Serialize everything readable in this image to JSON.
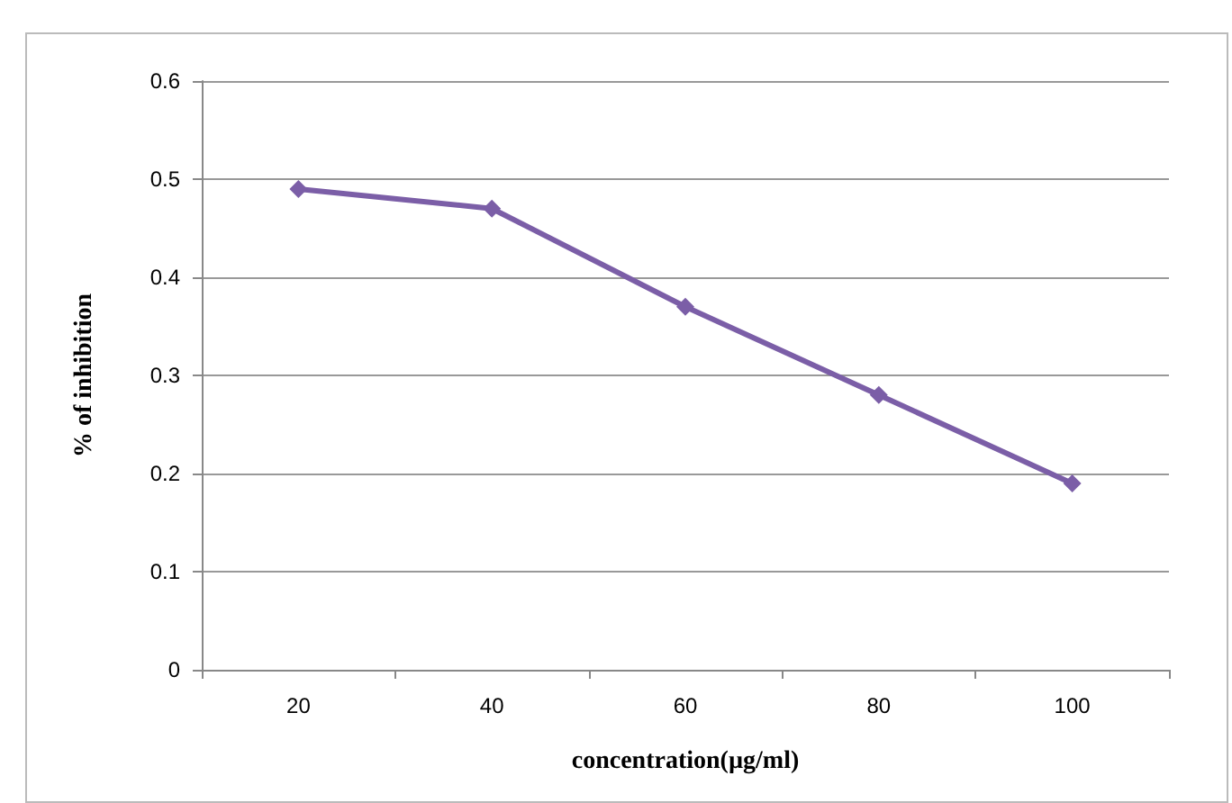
{
  "chart_data": {
    "type": "line",
    "xlabel": "concentration(µg/ml)",
    "ylabel": "% of inhibition",
    "categories": [
      "20",
      "40",
      "60",
      "80",
      "100"
    ],
    "series": [
      {
        "color": "#7b5ea7",
        "values": [
          0.49,
          0.47,
          0.37,
          0.28,
          0.19
        ]
      }
    ],
    "ylim": [
      0,
      0.6
    ],
    "yticks": [
      0,
      0.1,
      0.2,
      0.3,
      0.4,
      0.5,
      0.6
    ],
    "grid": "y",
    "marker": "diamond",
    "line_style": "solid"
  }
}
